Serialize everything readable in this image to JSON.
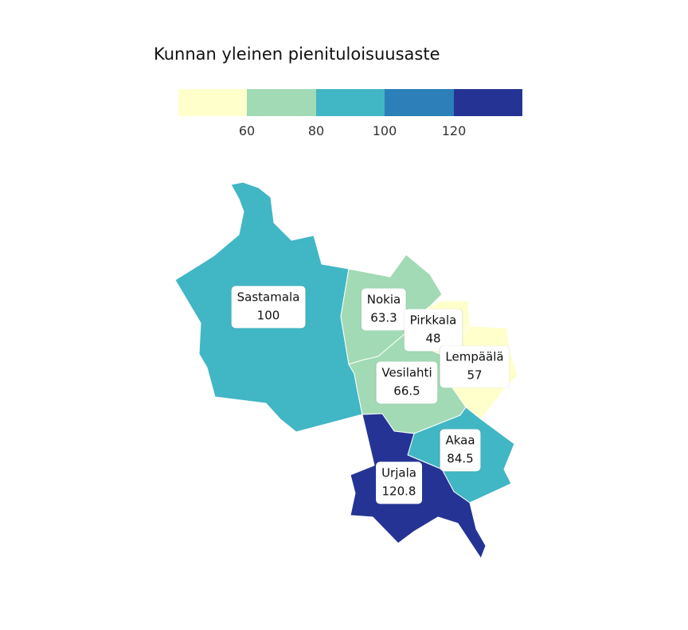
{
  "legend": {
    "title": "Kunnan yleinen pienituloisuusaste",
    "colors": [
      "#ffffcc",
      "#a1dab4",
      "#41b6c4",
      "#2c7fb8",
      "#253494"
    ],
    "ticks": [
      "60",
      "80",
      "100",
      "120"
    ]
  },
  "regions": [
    {
      "name": "Sastamala",
      "value": "100",
      "color": "#41b6c4"
    },
    {
      "name": "Nokia",
      "value": "63.3",
      "color": "#a1dab4"
    },
    {
      "name": "Pirkkala",
      "value": "48",
      "color": "#ffffcc"
    },
    {
      "name": "Lempäälä",
      "value": "57",
      "color": "#ffffcc"
    },
    {
      "name": "Vesilahti",
      "value": "66.5",
      "color": "#a1dab4"
    },
    {
      "name": "Akaa",
      "value": "84.5",
      "color": "#41b6c4"
    },
    {
      "name": "Urjala",
      "value": "120.8",
      "color": "#253494"
    }
  ]
}
